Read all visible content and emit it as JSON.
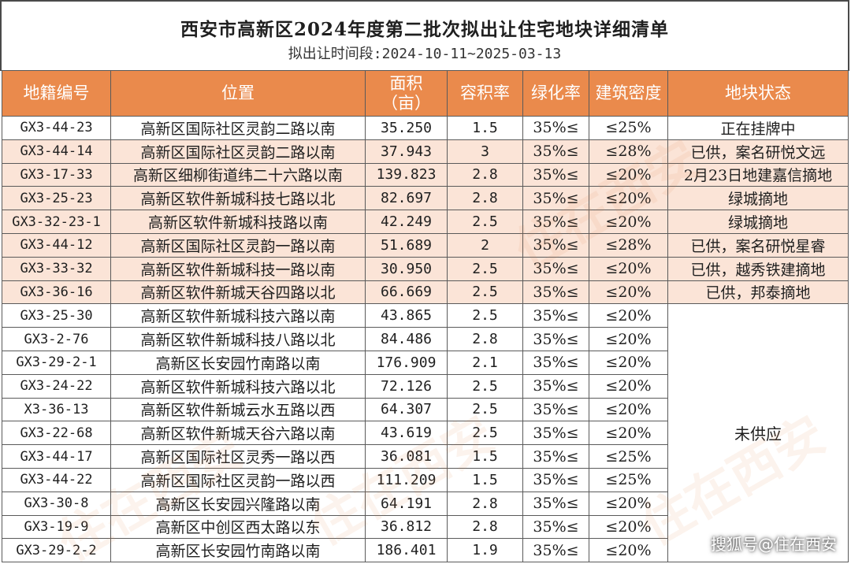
{
  "header": {
    "title": "西安市高新区2024年度第二批次拟出让住宅地块详细清单",
    "subtitle": "拟出让时间段:2024-10-11~2025-03-13"
  },
  "columns": [
    "地籍编号",
    "位置",
    "面积\n（亩）",
    "容积率",
    "绿化率",
    "建筑密度",
    "地块状态"
  ],
  "rows": [
    {
      "code": "GX3-44-23",
      "location": "高新区国际社区灵韵二路以南",
      "area": "35.250",
      "far": "1.5",
      "green": "35%≤",
      "density": "≤25%",
      "status": "正在挂牌中"
    },
    {
      "code": "GX3-44-14",
      "location": "高新区国际社区灵韵二路以南",
      "area": "37.943",
      "far": "3",
      "green": "35%≤",
      "density": "≤28%",
      "status": "已供，案名研悦文远"
    },
    {
      "code": "GX3-17-33",
      "location": "高新区细柳街道纬二十六路以南",
      "area": "139.823",
      "far": "2.8",
      "green": "35%≤",
      "density": "≤20%",
      "status": "2月23日地建嘉信摘地"
    },
    {
      "code": "GX3-25-23",
      "location": "高新区软件新城科技七路以北",
      "area": "82.697",
      "far": "2.8",
      "green": "35%≤",
      "density": "≤20%",
      "status": "绿城摘地"
    },
    {
      "code": "GX3-32-23-1",
      "location": "高新区软件新城科技路以南",
      "area": "42.249",
      "far": "2.5",
      "green": "35%≤",
      "density": "≤20%",
      "status": "绿城摘地"
    },
    {
      "code": "GX3-44-12",
      "location": "高新区国际社区灵韵一路以南",
      "area": "51.689",
      "far": "2",
      "green": "35%≤",
      "density": "≤28%",
      "status": "已供，案名研悦星睿"
    },
    {
      "code": "GX3-33-32",
      "location": "高新区软件新城科技一路以南",
      "area": "30.950",
      "far": "2.5",
      "green": "35%≤",
      "density": "≤20%",
      "status": "已供，越秀铁建摘地"
    },
    {
      "code": "GX3-36-16",
      "location": "高新区软件新城天谷四路以北",
      "area": "66.669",
      "far": "2.5",
      "green": "35%≤",
      "density": "≤20%",
      "status": "已供，邦泰摘地"
    },
    {
      "code": "GX3-25-30",
      "location": "高新区软件新城科技六路以南",
      "area": "43.865",
      "far": "2.5",
      "green": "35%≤",
      "density": "≤20%"
    },
    {
      "code": "GX3-2-76",
      "location": "高新区软件新城科技八路以北",
      "area": "84.486",
      "far": "2.8",
      "green": "35%≤",
      "density": "≤20%"
    },
    {
      "code": "GX3-29-2-1",
      "location": "高新区长安园竹南路以南",
      "area": "176.909",
      "far": "2.1",
      "green": "35%≤",
      "density": "≤20%"
    },
    {
      "code": "GX3-24-22",
      "location": "高新区软件新城科技六路以北",
      "area": "72.126",
      "far": "2.5",
      "green": "35%≤",
      "density": "≤20%"
    },
    {
      "code": "X3-36-13",
      "location": "高新区软件新城云水五路以西",
      "area": "64.307",
      "far": "2.5",
      "green": "35%≤",
      "density": "≤20%"
    },
    {
      "code": "GX3-22-68",
      "location": "高新区软件新城天谷六路以南",
      "area": "43.619",
      "far": "2.5",
      "green": "35%≤",
      "density": "≤20%"
    },
    {
      "code": "GX3-44-17",
      "location": "高新区国际社区灵秀一路以西",
      "area": "36.081",
      "far": "1.5",
      "green": "35%≤",
      "density": "≤25%"
    },
    {
      "code": "GX3-44-22",
      "location": "高新区国际社区灵韵一路以西",
      "area": "111.209",
      "far": "1.5",
      "green": "35%≤",
      "density": "≤25%"
    },
    {
      "code": "GX3-30-8",
      "location": "高新区长安园兴隆路以南",
      "area": "64.191",
      "far": "2.8",
      "green": "35%≤",
      "density": "≤20%"
    },
    {
      "code": "GX3-19-9",
      "location": "高新区中创区西太路以东",
      "area": "36.812",
      "far": "2.8",
      "green": "35%≤",
      "density": "≤20%"
    },
    {
      "code": "GX3-29-2-2",
      "location": "高新区长安园竹南路以南",
      "area": "186.401",
      "far": "1.9",
      "green": "35%≤",
      "density": "≤20%"
    }
  ],
  "merged_status": "未供应",
  "watermark": {
    "brand": "住在西安",
    "corner": "搜狐号@住在西安"
  },
  "colors": {
    "header_bg": "#ea8a4c",
    "highlight_row": "#fbe4d7"
  }
}
